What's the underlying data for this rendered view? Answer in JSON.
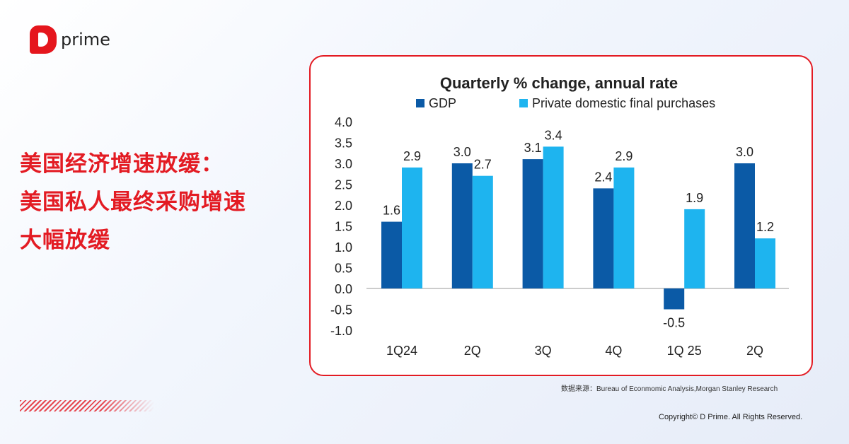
{
  "brand": {
    "name": "prime"
  },
  "headline": {
    "lines": [
      "美国经济增速放缓：",
      "美国私人最终采购增速",
      "大幅放缓"
    ]
  },
  "source": "数据来源：Bureau of Econmomic Analysis,Morgan Stanley Research",
  "copyright": "Copyright© D Prime. All Rights Reserved.",
  "colors": {
    "accent": "#e31b23",
    "gdp": "#0b5aa6",
    "private": "#1eb4ef"
  },
  "chart_data": {
    "type": "bar",
    "title": "Quarterly % change, annual rate",
    "categories": [
      "1Q24",
      "2Q",
      "3Q",
      "4Q",
      "1Q 25",
      "2Q"
    ],
    "series": [
      {
        "name": "GDP",
        "values": [
          1.6,
          3.0,
          3.1,
          2.4,
          -0.5,
          3.0
        ]
      },
      {
        "name": "Private domestic final purchases",
        "values": [
          2.9,
          2.7,
          3.4,
          2.9,
          1.9,
          1.2
        ]
      }
    ],
    "ylim": [
      -1.0,
      4.0
    ],
    "yticks": [
      "4.0",
      "3.5",
      "3.0",
      "2.5",
      "2.0",
      "1.5",
      "1.0",
      "0.5",
      "0.0",
      "-0.5",
      "-1.0"
    ],
    "legend": "top",
    "grid": false
  }
}
